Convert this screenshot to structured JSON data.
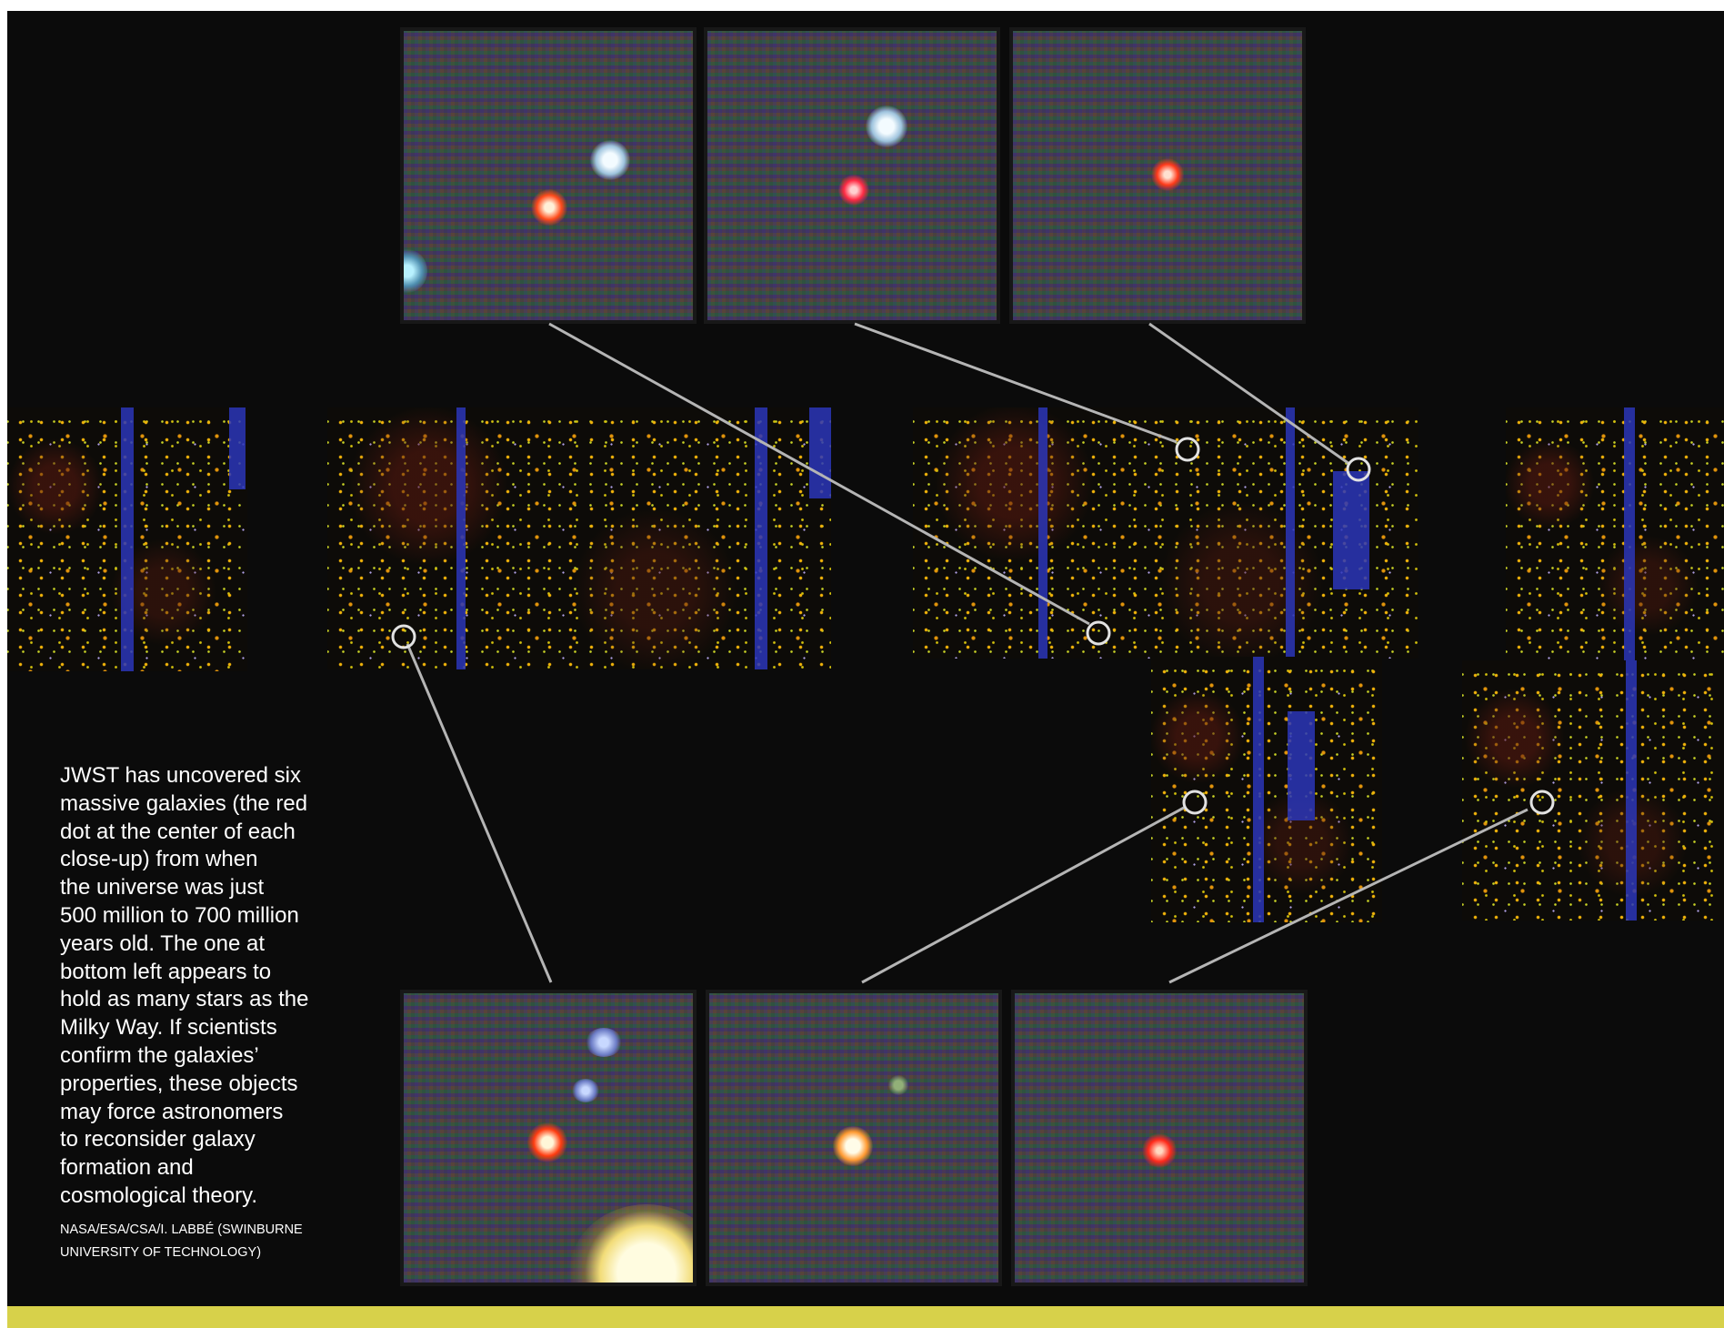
{
  "caption": {
    "text": "JWST has uncovered six\nmassive galaxies (the red\ndot at the center of each\nclose-up) from when\nthe universe was just\n500 million to 700 million\nyears old. The one at\nbottom left appears to\nhold as many stars as the\nMilky Way. If scientists\nconfirm the galaxies’\nproperties, these objects\nmay force astronomers\nto reconsider galaxy\nformation and\ncosmological theory.",
    "credit": "NASA/ESA/CSA/I. LABBÉ (SWINBURNE\nUNIVERSITY OF TECHNOLOGY)"
  },
  "colors": {
    "background": "#0b0b0b",
    "accent_strip": "#d7d14a",
    "caption_text": "#ffffff",
    "connector_line": "#b5b5b5"
  }
}
